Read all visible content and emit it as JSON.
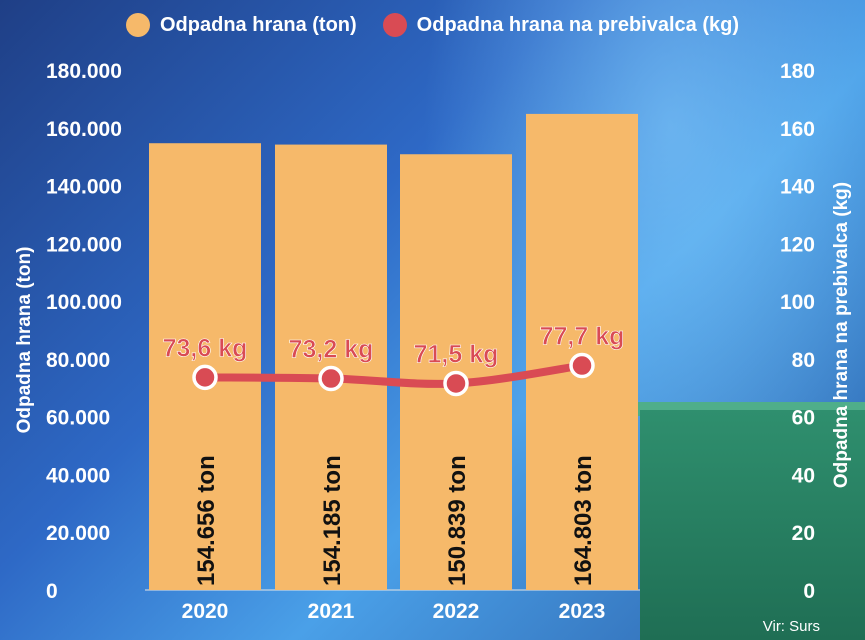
{
  "chart_data": {
    "type": "bar",
    "categories": [
      "2020",
      "2021",
      "2022",
      "2023"
    ],
    "series": [
      {
        "name": "Odpadna hrana (ton)",
        "axis": "left",
        "type": "bar",
        "values": [
          154656,
          154185,
          150839,
          164803
        ],
        "data_labels": [
          "154.656 ton",
          "154.185 ton",
          "150.839 ton",
          "164.803 ton"
        ]
      },
      {
        "name": "Odpadna hrana na prebivalca (kg)",
        "axis": "right",
        "type": "line",
        "values": [
          73.6,
          73.2,
          71.5,
          77.7
        ],
        "data_labels": [
          "73,6 kg",
          "73,2 kg",
          "71,5 kg",
          "77,7 kg"
        ]
      }
    ],
    "ylabel_left": "Odpadna hrana (ton)",
    "ylabel_right": "Odpadna hrana na prebivalca (kg)",
    "ylim_left": [
      0,
      180000
    ],
    "ylim_right": [
      0,
      180
    ],
    "yticks_left": [
      "0",
      "20.000",
      "40.000",
      "60.000",
      "80.000",
      "100.000",
      "120.000",
      "140.000",
      "160.000",
      "180.000"
    ],
    "yticks_right": [
      "0",
      "20",
      "40",
      "60",
      "80",
      "100",
      "120",
      "140",
      "160",
      "180"
    ],
    "legend_position": "top-center",
    "grid": false
  },
  "colors": {
    "bar": "#f6b96a",
    "line": "#d94b54",
    "label_red": "#d94b54",
    "text_white": "#ffffff",
    "text_dark": "#111111"
  },
  "legend": [
    {
      "label": "Odpadna hrana (ton)",
      "color": "#f6b96a"
    },
    {
      "label": "Odpadna hrana na prebivalca (kg)",
      "color": "#d94b54"
    }
  ],
  "source": "Vir: Surs"
}
